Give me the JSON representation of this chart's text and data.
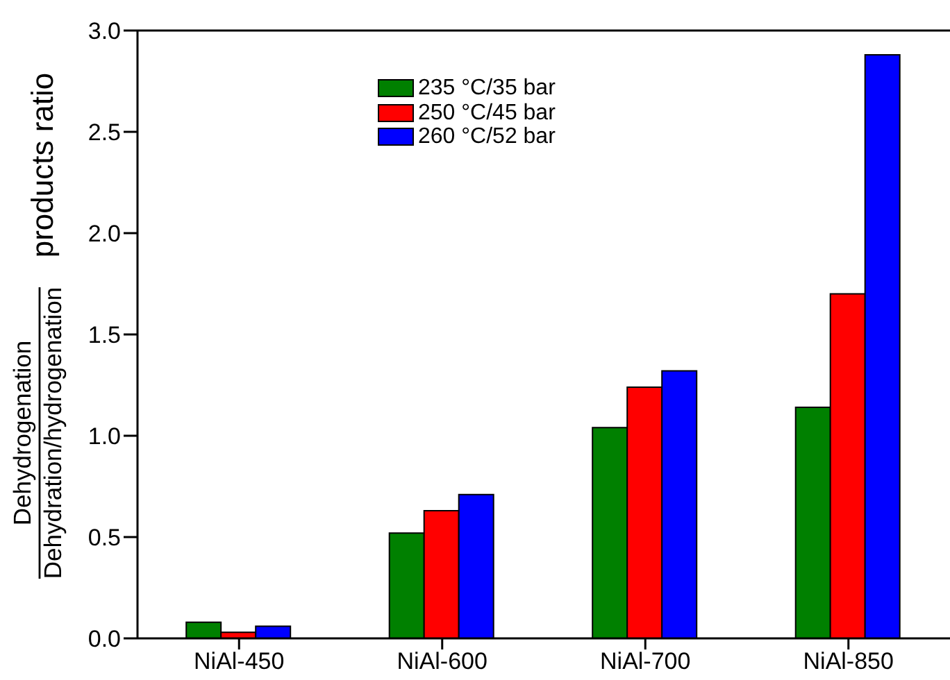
{
  "chart_data": {
    "type": "bar",
    "categories": [
      "NiAl-450",
      "NiAl-600",
      "NiAl-700",
      "NiAl-850"
    ],
    "series": [
      {
        "name": "235 °C/35 bar",
        "color": "#008000",
        "values": [
          0.08,
          0.52,
          1.04,
          1.14
        ]
      },
      {
        "name": "250 °C/45 bar",
        "color": "#ff0000",
        "values": [
          0.03,
          0.63,
          1.24,
          1.7
        ]
      },
      {
        "name": "260 °C/52 bar",
        "color": "#0000ff",
        "values": [
          0.06,
          0.71,
          1.32,
          2.88
        ]
      }
    ],
    "ylabel": "Dehydrogenation\nDehydration/hydrogenation\nproducts ratio",
    "ylim": [
      0,
      3
    ],
    "yticks": [
      {
        "value": 0,
        "label": "0.0"
      },
      0.5,
      {
        "value": 1,
        "label": "1.0"
      },
      1.5,
      {
        "value": 2,
        "label": "2.0"
      },
      2.5,
      {
        "value": 3,
        "label": "3.0"
      }
    ],
    "legend": "top"
  }
}
